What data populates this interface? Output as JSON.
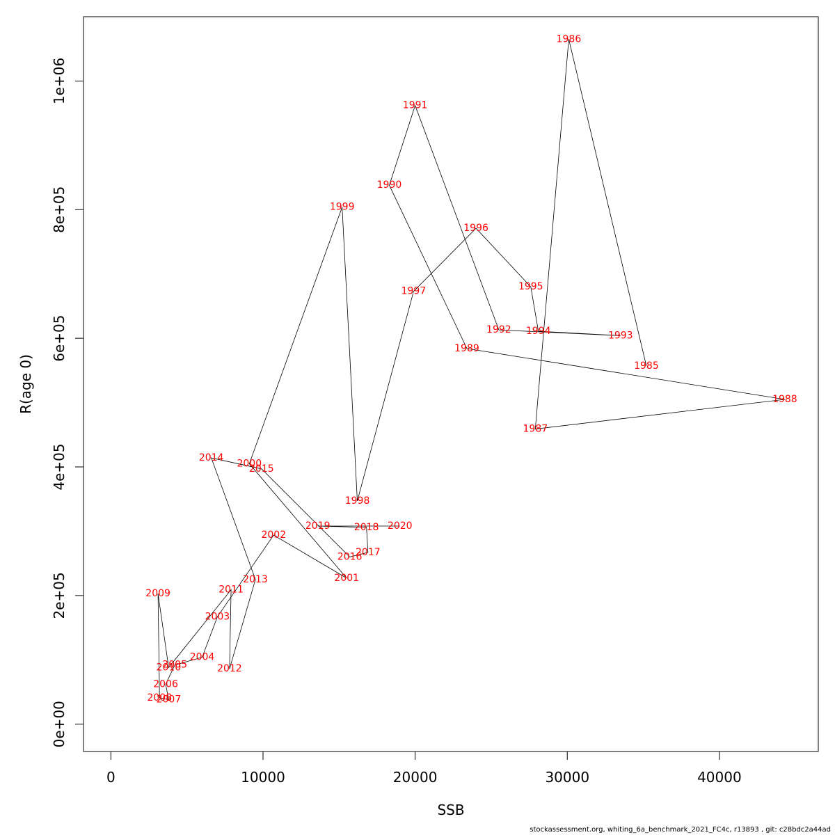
{
  "chart_data": {
    "type": "line",
    "xlabel": "SSB",
    "ylabel": "R(age 0)",
    "xlim": [
      -1800,
      46500
    ],
    "ylim": [
      -42500,
      1100000
    ],
    "x_ticks": [
      {
        "value": 0,
        "label": "0"
      },
      {
        "value": 10000,
        "label": "10000"
      },
      {
        "value": 20000,
        "label": "20000"
      },
      {
        "value": 30000,
        "label": "30000"
      },
      {
        "value": 40000,
        "label": "40000"
      }
    ],
    "y_ticks": [
      {
        "value": 0,
        "label": "0e+00"
      },
      {
        "value": 200000,
        "label": "2e+05"
      },
      {
        "value": 400000,
        "label": "4e+05"
      },
      {
        "value": 600000,
        "label": "6e+05"
      },
      {
        "value": 800000,
        "label": "8e+05"
      },
      {
        "value": 1000000,
        "label": "1e+06"
      }
    ],
    "label_color": "#ff0000",
    "line_color": "#000000",
    "points": [
      {
        "year": "1985",
        "ssb": 35200,
        "r": 557000
      },
      {
        "year": "1986",
        "ssb": 30100,
        "r": 1065000
      },
      {
        "year": "1987",
        "ssb": 27900,
        "r": 459000
      },
      {
        "year": "1988",
        "ssb": 44300,
        "r": 505000
      },
      {
        "year": "1989",
        "ssb": 23400,
        "r": 584000
      },
      {
        "year": "1990",
        "ssb": 18300,
        "r": 838000
      },
      {
        "year": "1991",
        "ssb": 20000,
        "r": 962000
      },
      {
        "year": "1992",
        "ssb": 25500,
        "r": 613000
      },
      {
        "year": "1993",
        "ssb": 33500,
        "r": 604000
      },
      {
        "year": "1994",
        "ssb": 28100,
        "r": 611000
      },
      {
        "year": "1995",
        "ssb": 27600,
        "r": 680000
      },
      {
        "year": "1996",
        "ssb": 24000,
        "r": 771000
      },
      {
        "year": "1997",
        "ssb": 19900,
        "r": 673000
      },
      {
        "year": "1998",
        "ssb": 16200,
        "r": 347000
      },
      {
        "year": "1999",
        "ssb": 15200,
        "r": 804000
      },
      {
        "year": "2000",
        "ssb": 9100,
        "r": 405000
      },
      {
        "year": "2001",
        "ssb": 15500,
        "r": 227000
      },
      {
        "year": "2002",
        "ssb": 10700,
        "r": 294000
      },
      {
        "year": "2003",
        "ssb": 7000,
        "r": 167000
      },
      {
        "year": "2004",
        "ssb": 6000,
        "r": 104000
      },
      {
        "year": "2005",
        "ssb": 4200,
        "r": 92000
      },
      {
        "year": "2006",
        "ssb": 3600,
        "r": 62000
      },
      {
        "year": "2007",
        "ssb": 3800,
        "r": 38000
      },
      {
        "year": "2008",
        "ssb": 3200,
        "r": 41000
      },
      {
        "year": "2009",
        "ssb": 3100,
        "r": 203000
      },
      {
        "year": "2010",
        "ssb": 3800,
        "r": 88000
      },
      {
        "year": "2011",
        "ssb": 7900,
        "r": 209000
      },
      {
        "year": "2012",
        "ssb": 7800,
        "r": 86000
      },
      {
        "year": "2013",
        "ssb": 9500,
        "r": 225000
      },
      {
        "year": "2014",
        "ssb": 6600,
        "r": 414000
      },
      {
        "year": "2015",
        "ssb": 9900,
        "r": 397000
      },
      {
        "year": "2016",
        "ssb": 15700,
        "r": 260000
      },
      {
        "year": "2017",
        "ssb": 16900,
        "r": 267000
      },
      {
        "year": "2018",
        "ssb": 16800,
        "r": 306000
      },
      {
        "year": "2019",
        "ssb": 13600,
        "r": 308000
      },
      {
        "year": "2020",
        "ssb": 19000,
        "r": 308000
      }
    ]
  },
  "footer": {
    "text": "stockassessment.org, whiting_6a_benchmark_2021_FC4c, r13893 , git: c28bdc2a44ad"
  }
}
